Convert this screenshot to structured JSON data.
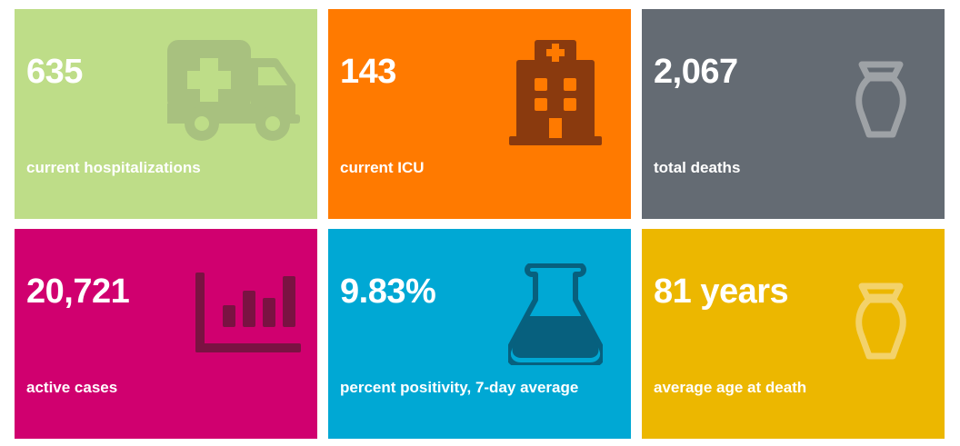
{
  "tiles": [
    {
      "value": "635",
      "label": "current hospitalizations",
      "icon": "ambulance-icon",
      "color": "#bedd88",
      "icon_color": "#a8c17f"
    },
    {
      "value": "143",
      "label": "current ICU",
      "icon": "hospital-icon",
      "color": "#ff7a00",
      "icon_color": "#8a3a0e"
    },
    {
      "value": "2,067",
      "label": "total deaths",
      "icon": "urn-icon",
      "color": "#646b73",
      "icon_color": "#9ea2a6"
    },
    {
      "value": "20,721",
      "label": "active cases",
      "icon": "bar-chart-icon",
      "color": "#d0006f",
      "icon_color": "#7a1242"
    },
    {
      "value": "9.83%",
      "label": "percent positivity, 7-day average",
      "icon": "flask-icon",
      "color": "#00a8d4",
      "icon_color": "#07607e"
    },
    {
      "value": "81 years",
      "label": "average age at death",
      "icon": "urn-icon",
      "color": "#ecb700",
      "icon_color": "#f3d26a"
    }
  ]
}
